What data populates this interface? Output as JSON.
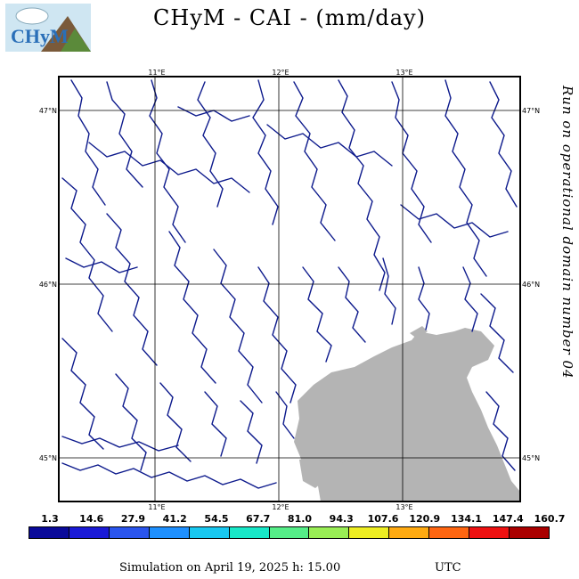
{
  "title": "CHyM - CAI - (mm/day)",
  "logo_text": "CHyM",
  "side_label": "Run on operational domain number 04",
  "map": {
    "lon_labels": [
      "11°E",
      "12°E",
      "13°E"
    ],
    "lat_labels": [
      "47°N",
      "46°N",
      "45°N"
    ]
  },
  "legend": {
    "values": [
      "1.3",
      "14.6",
      "27.9",
      "41.2",
      "54.5",
      "67.7",
      "81.0",
      "94.3",
      "107.6",
      "120.9",
      "134.1",
      "147.4",
      "160.7"
    ],
    "colors": [
      "#0a0a9a",
      "#1a1ad6",
      "#2a55ee",
      "#1e90ff",
      "#18c8f0",
      "#18e8c8",
      "#55ee88",
      "#99ee55",
      "#eeee22",
      "#ffaa11",
      "#ff6611",
      "#ee1111",
      "#aa0000"
    ]
  },
  "footer": {
    "simulation": "Simulation on April 19, 2025 h: 15.00",
    "timezone": "UTC"
  }
}
